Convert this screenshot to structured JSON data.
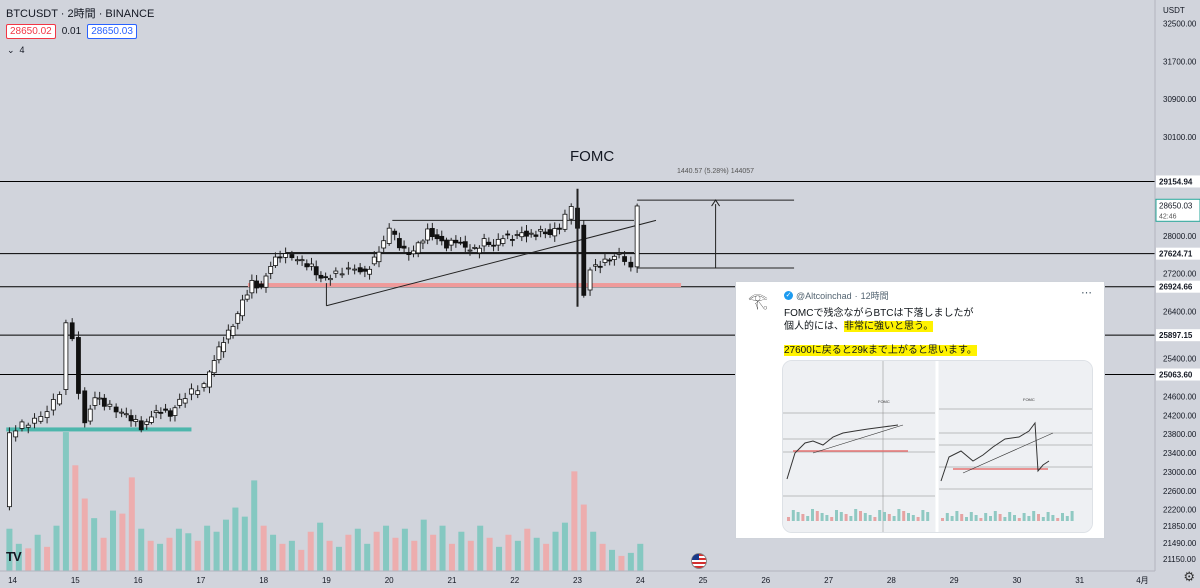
{
  "header": {
    "symbol": "BTCUSDT · 2時間 · BINANCE",
    "bid": "28650.02",
    "spread": "0.01",
    "ask": "28650.03",
    "indicator_count": "4"
  },
  "axis": {
    "currency": "USDT",
    "countdown": "42:46"
  },
  "annotations": {
    "event": "FOMC",
    "measure": "1440.57 (5.28%) 144057"
  },
  "chart_data": {
    "type": "candlestick",
    "symbol": "BTCUSDT",
    "interval": "2時間",
    "exchange": "BINANCE",
    "y_ticks": [
      21150,
      21490,
      21850,
      22200,
      22600,
      23000,
      23400,
      23800,
      24200,
      24600,
      25400,
      26400,
      27200,
      28000,
      30100,
      30900,
      31700,
      32500
    ],
    "x_ticks": [
      "14",
      "15",
      "16",
      "17",
      "18",
      "19",
      "20",
      "21",
      "22",
      "23",
      "24",
      "25",
      "26",
      "27",
      "28",
      "29",
      "30",
      "31",
      "4月"
    ],
    "x_tick_days": [
      14,
      15,
      16,
      17,
      18,
      19,
      20,
      21,
      22,
      23,
      24,
      25,
      26,
      27,
      28,
      29,
      30,
      31,
      32
    ],
    "ylim": [
      20900,
      33000
    ],
    "xlim": [
      13.8,
      32.2
    ],
    "horizontal_levels": [
      {
        "price": 29154.94,
        "label": "29154.94"
      },
      {
        "price": 27624.71,
        "label": "27624.71"
      },
      {
        "price": 26924.66,
        "label": "26924.66"
      },
      {
        "price": 25897.15,
        "label": "25897.15"
      },
      {
        "price": 25063.6,
        "label": "25063.60"
      }
    ],
    "last_price": {
      "price": 28650.03,
      "label": "28650.03",
      "color": "#26a69a"
    },
    "support_zones": [
      {
        "price": 23900,
        "x_start": 13.9,
        "x_end": 16.85,
        "color": "#4db6ac"
      },
      {
        "price": 26960,
        "x_start": 17.75,
        "x_end": 24.65,
        "color": "#ef9a9a"
      }
    ],
    "trend_lines": [
      {
        "x1": 19.0,
        "y1": 26520,
        "x2": 24.25,
        "y2": 28330
      },
      {
        "x1": 19.0,
        "y1": 27000,
        "x2": 19.0,
        "y2": 26520
      }
    ],
    "range_box": {
      "x_start": 18.35,
      "x_end": 24.2,
      "y_top": 28330,
      "y_bottom": 27650
    },
    "measure": {
      "x_start": 23.95,
      "x_end": 26.45,
      "y_top": 28760,
      "y_bottom": 27320,
      "arrow_x": 25.2
    },
    "fomc_x": 23.0,
    "price_path": [
      [
        13.9,
        22300
      ],
      [
        14.0,
        23800
      ],
      [
        14.2,
        24000
      ],
      [
        14.4,
        24100
      ],
      [
        14.6,
        24300
      ],
      [
        14.8,
        24700
      ],
      [
        14.9,
        26100
      ],
      [
        15.0,
        25800
      ],
      [
        15.1,
        24700
      ],
      [
        15.2,
        24100
      ],
      [
        15.35,
        24600
      ],
      [
        15.5,
        24450
      ],
      [
        15.7,
        24300
      ],
      [
        15.85,
        24200
      ],
      [
        16.0,
        24050
      ],
      [
        16.1,
        23950
      ],
      [
        16.25,
        24200
      ],
      [
        16.4,
        24300
      ],
      [
        16.55,
        24200
      ],
      [
        16.7,
        24500
      ],
      [
        16.9,
        24700
      ],
      [
        17.1,
        24850
      ],
      [
        17.25,
        25400
      ],
      [
        17.4,
        25800
      ],
      [
        17.55,
        26100
      ],
      [
        17.7,
        26600
      ],
      [
        17.85,
        27000
      ],
      [
        18.0,
        26900
      ],
      [
        18.15,
        27400
      ],
      [
        18.3,
        27600
      ],
      [
        18.5,
        27550
      ],
      [
        18.65,
        27450
      ],
      [
        18.8,
        27350
      ],
      [
        18.95,
        27100
      ],
      [
        19.1,
        27150
      ],
      [
        19.3,
        27250
      ],
      [
        19.5,
        27300
      ],
      [
        19.65,
        27200
      ],
      [
        19.8,
        27500
      ],
      [
        19.95,
        27900
      ],
      [
        20.05,
        28150
      ],
      [
        20.2,
        27800
      ],
      [
        20.35,
        27600
      ],
      [
        20.5,
        27800
      ],
      [
        20.65,
        28100
      ],
      [
        20.8,
        27950
      ],
      [
        20.95,
        27800
      ],
      [
        21.1,
        27900
      ],
      [
        21.25,
        27750
      ],
      [
        21.4,
        27700
      ],
      [
        21.55,
        27900
      ],
      [
        21.7,
        27800
      ],
      [
        21.85,
        28000
      ],
      [
        22.0,
        27950
      ],
      [
        22.15,
        28050
      ],
      [
        22.3,
        28000
      ],
      [
        22.45,
        28100
      ],
      [
        22.6,
        28050
      ],
      [
        22.75,
        28200
      ],
      [
        22.85,
        28400
      ],
      [
        22.95,
        28600
      ],
      [
        23.05,
        28200
      ],
      [
        23.15,
        26800
      ],
      [
        23.25,
        27300
      ],
      [
        23.4,
        27400
      ],
      [
        23.55,
        27500
      ],
      [
        23.7,
        27600
      ],
      [
        23.8,
        27500
      ],
      [
        23.9,
        27400
      ],
      [
        24.0,
        28650
      ]
    ],
    "volume": {
      "max_volume": 100,
      "bars": [
        {
          "x": 13.95,
          "v": 28,
          "up": true
        },
        {
          "x": 14.1,
          "v": 18,
          "up": true
        },
        {
          "x": 14.25,
          "v": 15,
          "up": false
        },
        {
          "x": 14.4,
          "v": 24,
          "up": true
        },
        {
          "x": 14.55,
          "v": 16,
          "up": false
        },
        {
          "x": 14.7,
          "v": 30,
          "up": true
        },
        {
          "x": 14.85,
          "v": 92,
          "up": true
        },
        {
          "x": 15.0,
          "v": 70,
          "up": false
        },
        {
          "x": 15.15,
          "v": 48,
          "up": false
        },
        {
          "x": 15.3,
          "v": 35,
          "up": true
        },
        {
          "x": 15.45,
          "v": 22,
          "up": false
        },
        {
          "x": 15.6,
          "v": 40,
          "up": true
        },
        {
          "x": 15.75,
          "v": 38,
          "up": false
        },
        {
          "x": 15.9,
          "v": 62,
          "up": false
        },
        {
          "x": 16.05,
          "v": 28,
          "up": true
        },
        {
          "x": 16.2,
          "v": 20,
          "up": false
        },
        {
          "x": 16.35,
          "v": 18,
          "up": true
        },
        {
          "x": 16.5,
          "v": 22,
          "up": false
        },
        {
          "x": 16.65,
          "v": 28,
          "up": true
        },
        {
          "x": 16.8,
          "v": 25,
          "up": true
        },
        {
          "x": 16.95,
          "v": 20,
          "up": false
        },
        {
          "x": 17.1,
          "v": 30,
          "up": true
        },
        {
          "x": 17.25,
          "v": 26,
          "up": true
        },
        {
          "x": 17.4,
          "v": 34,
          "up": true
        },
        {
          "x": 17.55,
          "v": 42,
          "up": true
        },
        {
          "x": 17.7,
          "v": 36,
          "up": true
        },
        {
          "x": 17.85,
          "v": 60,
          "up": true
        },
        {
          "x": 18.0,
          "v": 30,
          "up": false
        },
        {
          "x": 18.15,
          "v": 24,
          "up": true
        },
        {
          "x": 18.3,
          "v": 18,
          "up": false
        },
        {
          "x": 18.45,
          "v": 20,
          "up": true
        },
        {
          "x": 18.6,
          "v": 14,
          "up": false
        },
        {
          "x": 18.75,
          "v": 26,
          "up": false
        },
        {
          "x": 18.9,
          "v": 32,
          "up": true
        },
        {
          "x": 19.05,
          "v": 20,
          "up": false
        },
        {
          "x": 19.2,
          "v": 16,
          "up": true
        },
        {
          "x": 19.35,
          "v": 24,
          "up": false
        },
        {
          "x": 19.5,
          "v": 28,
          "up": true
        },
        {
          "x": 19.65,
          "v": 18,
          "up": true
        },
        {
          "x": 19.8,
          "v": 26,
          "up": false
        },
        {
          "x": 19.95,
          "v": 30,
          "up": true
        },
        {
          "x": 20.1,
          "v": 22,
          "up": false
        },
        {
          "x": 20.25,
          "v": 28,
          "up": true
        },
        {
          "x": 20.4,
          "v": 20,
          "up": false
        },
        {
          "x": 20.55,
          "v": 34,
          "up": true
        },
        {
          "x": 20.7,
          "v": 24,
          "up": false
        },
        {
          "x": 20.85,
          "v": 30,
          "up": true
        },
        {
          "x": 21.0,
          "v": 18,
          "up": false
        },
        {
          "x": 21.15,
          "v": 26,
          "up": true
        },
        {
          "x": 21.3,
          "v": 20,
          "up": false
        },
        {
          "x": 21.45,
          "v": 30,
          "up": true
        },
        {
          "x": 21.6,
          "v": 22,
          "up": false
        },
        {
          "x": 21.75,
          "v": 16,
          "up": true
        },
        {
          "x": 21.9,
          "v": 24,
          "up": false
        },
        {
          "x": 22.05,
          "v": 20,
          "up": true
        },
        {
          "x": 22.2,
          "v": 28,
          "up": false
        },
        {
          "x": 22.35,
          "v": 22,
          "up": true
        },
        {
          "x": 22.5,
          "v": 18,
          "up": false
        },
        {
          "x": 22.65,
          "v": 26,
          "up": true
        },
        {
          "x": 22.8,
          "v": 32,
          "up": true
        },
        {
          "x": 22.95,
          "v": 66,
          "up": false
        },
        {
          "x": 23.1,
          "v": 44,
          "up": false
        },
        {
          "x": 23.25,
          "v": 26,
          "up": true
        },
        {
          "x": 23.4,
          "v": 18,
          "up": false
        },
        {
          "x": 23.55,
          "v": 14,
          "up": true
        },
        {
          "x": 23.7,
          "v": 10,
          "up": false
        },
        {
          "x": 23.85,
          "v": 12,
          "up": true
        },
        {
          "x": 24.0,
          "v": 18,
          "up": true
        }
      ]
    }
  },
  "tweet": {
    "avatar_icon": "eye-of-horus-icon",
    "handle": "@Altcoinchad",
    "time": "12時間",
    "line1": "FOMCで残念ながらBTCは下落しましたが",
    "line2_pre": "個人的には、",
    "line2_hl": "非常に強いと思う。",
    "line3_hl": "27600に戻ると29kまで上がると思います。",
    "thumb_left_label": "FOMC",
    "thumb_right_label": "FOMC"
  }
}
